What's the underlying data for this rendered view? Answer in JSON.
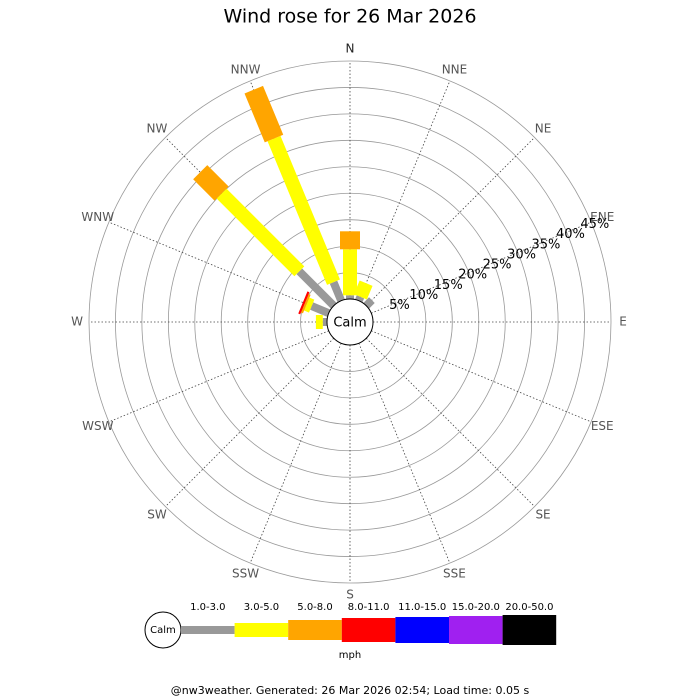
{
  "chart_data": {
    "type": "windrose",
    "title": "Wind rose for 26 Mar 2026",
    "categories": [
      "N",
      "NNE",
      "NE",
      "ENE",
      "E",
      "ESE",
      "SE",
      "SSE",
      "S",
      "SSW",
      "SW",
      "WSW",
      "W",
      "WNW",
      "NW",
      "NNW"
    ],
    "series": [
      {
        "name": "1.0-3.0",
        "color": "#999999",
        "values": [
          0.7,
          0.8,
          1.5,
          0,
          0,
          0,
          0,
          0,
          0,
          0,
          0,
          0,
          0.8,
          3.5,
          9.2,
          3.8
        ]
      },
      {
        "name": "3.0-5.0",
        "color": "#ffff00",
        "values": [
          8.7,
          2.8,
          0,
          0,
          0,
          0,
          0,
          0,
          0,
          0,
          0,
          0,
          1.3,
          1.0,
          20.8,
          29.4
        ]
      },
      {
        "name": "5.0-8.0",
        "color": "#ffa500",
        "values": [
          3.4,
          0,
          0,
          0,
          0,
          0,
          0,
          0,
          0,
          0,
          0,
          0,
          0,
          0.4,
          5.7,
          10
        ]
      },
      {
        "name": "8.0-11.0",
        "color": "#ff0000",
        "values": [
          0,
          0,
          0,
          0,
          0,
          0,
          0,
          0,
          0,
          0,
          0,
          0,
          0,
          0.4,
          0,
          0
        ]
      },
      {
        "name": "11.0-15.0",
        "color": "#0000ff",
        "values": [
          0,
          0,
          0,
          0,
          0,
          0,
          0,
          0,
          0,
          0,
          0,
          0,
          0,
          0,
          0,
          0
        ]
      },
      {
        "name": "15.0-20.0",
        "color": "#a020f0",
        "values": [
          0,
          0,
          0,
          0,
          0,
          0,
          0,
          0,
          0,
          0,
          0,
          0,
          0,
          0,
          0,
          0
        ]
      },
      {
        "name": "20.0-50.0",
        "color": "#000000",
        "values": [
          0,
          0,
          0,
          0,
          0,
          0,
          0,
          0,
          0,
          0,
          0,
          0,
          0,
          0,
          0,
          0
        ]
      }
    ],
    "rlim": [
      0,
      45
    ],
    "rticks": [
      {
        "value": 5,
        "label": "5%"
      },
      {
        "value": 10,
        "label": "10%"
      },
      {
        "value": 15,
        "label": "15%"
      },
      {
        "value": 20,
        "label": "20%"
      },
      {
        "value": 25,
        "label": "25%"
      },
      {
        "value": 30,
        "label": "30%"
      },
      {
        "value": 35,
        "label": "35%"
      },
      {
        "value": 40,
        "label": "40%"
      },
      {
        "value": 45,
        "label": "45%"
      }
    ],
    "calm_label": "Calm",
    "legend_unit": "mph",
    "caption": "@nw3weather. Generated: 26 Mar 2026 02:54; Load time: 0.05 s"
  }
}
